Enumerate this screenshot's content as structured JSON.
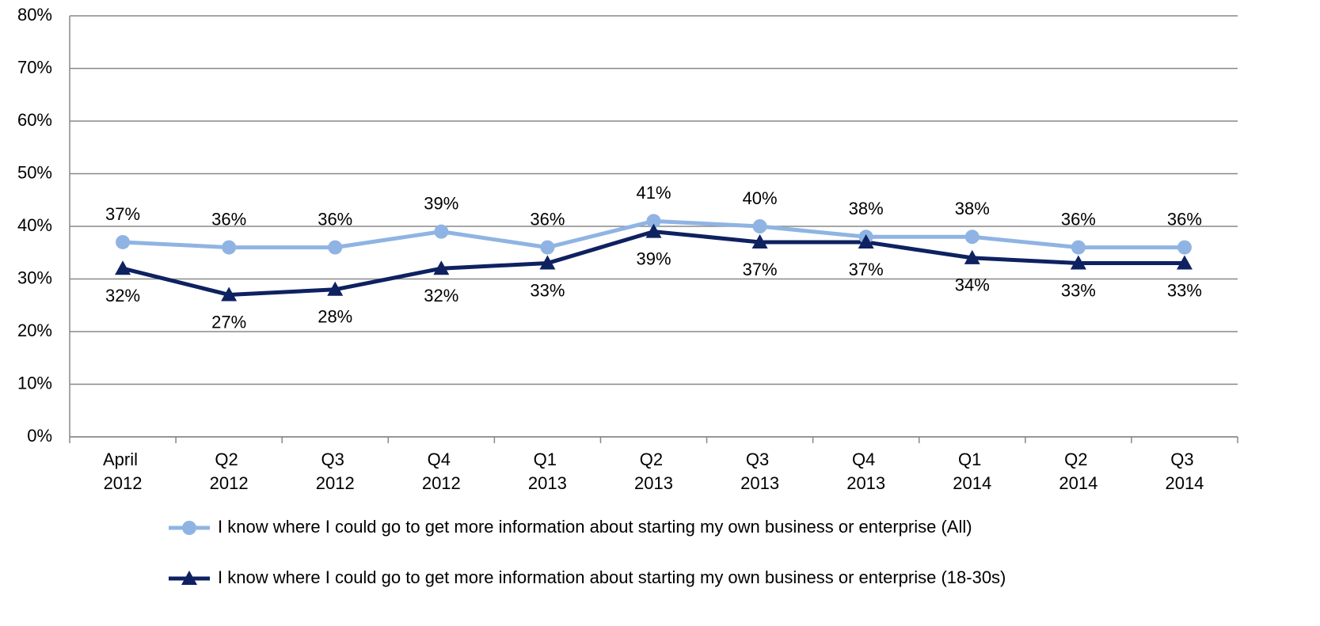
{
  "chart_data": {
    "type": "line",
    "categories": [
      "April 2012",
      "Q2 2012",
      "Q3 2012",
      "Q4 2012",
      "Q1 2013",
      "Q2 2013",
      "Q3 2013",
      "Q4 2013",
      "Q1 2014",
      "Q2 2014",
      "Q3 2014"
    ],
    "series": [
      {
        "name": "I know where I could go to get more information about starting my own business or enterprise (All)",
        "color": "#8fb4e3",
        "marker": "circle",
        "values": [
          37,
          36,
          36,
          39,
          36,
          41,
          40,
          38,
          38,
          36,
          36
        ],
        "value_labels": [
          "37%",
          "36%",
          "36%",
          "39%",
          "36%",
          "41%",
          "40%",
          "38%",
          "38%",
          "36%",
          "36%"
        ]
      },
      {
        "name": "I know where I could go to get more information about starting my own business or enterprise (18-30s)",
        "color": "#0e2160",
        "marker": "triangle",
        "values": [
          32,
          27,
          28,
          32,
          33,
          39,
          37,
          37,
          34,
          33,
          33
        ],
        "value_labels": [
          "32%",
          "27%",
          "28%",
          "32%",
          "33%",
          "39%",
          "37%",
          "37%",
          "34%",
          "33%",
          "33%"
        ]
      }
    ],
    "ylim": [
      0,
      80
    ],
    "yticks": [
      {
        "value": 0,
        "label": "0%"
      },
      {
        "value": 10,
        "label": "10%"
      },
      {
        "value": 20,
        "label": "20%"
      },
      {
        "value": 30,
        "label": "30%"
      },
      {
        "value": 40,
        "label": "40%"
      },
      {
        "value": 50,
        "label": "50%"
      },
      {
        "value": 60,
        "label": "60%"
      },
      {
        "value": 70,
        "label": "70%"
      },
      {
        "value": 80,
        "label": "80%"
      }
    ],
    "grid": true,
    "legend": "bottom"
  }
}
